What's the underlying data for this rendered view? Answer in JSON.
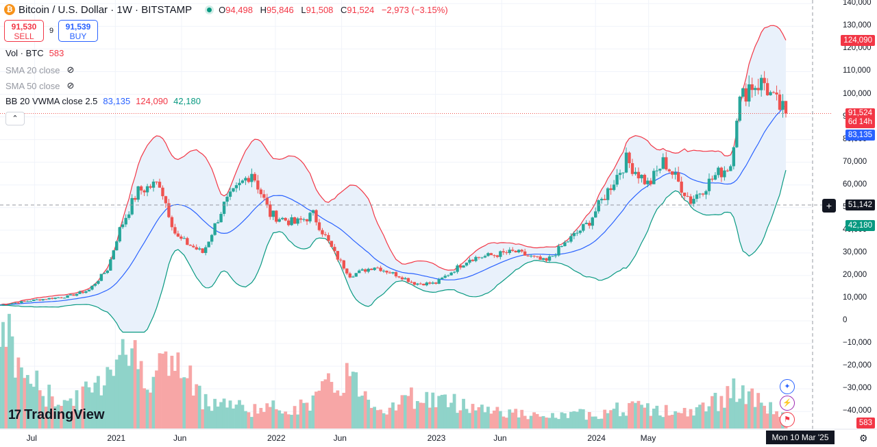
{
  "legend": {
    "logo_glyph": "₿",
    "title": "Bitcoin / U.S. Dollar · 1W · BITSTAMP",
    "ohlc": [
      {
        "k": "O",
        "v": "94,498"
      },
      {
        "k": "H",
        "v": "95,846"
      },
      {
        "k": "L",
        "v": "91,508"
      },
      {
        "k": "C",
        "v": "91,524"
      },
      {
        "k": "",
        "v": "−2,973 (−3.15%)"
      }
    ],
    "sell_price": "91,530",
    "sell_label": "SELL",
    "spread": "9",
    "buy_price": "91,539",
    "buy_label": "BUY",
    "vol_label": "Vol · BTC",
    "vol_value": "583",
    "sma20_label": "SMA 20 close",
    "sma50_label": "SMA 50 close",
    "bb_label": "BB 20 VWMA close 2.5",
    "bb_mid": "83,135",
    "bb_upper": "124,090",
    "bb_lower": "42,180",
    "collapse_glyph": "⌃",
    "eye_glyph": "⊘"
  },
  "price_labels": {
    "upper": "124,090",
    "last": "91,524",
    "countdown": "6d 14h",
    "mid": "83,135",
    "crosshair": "51,142",
    "lower": "42,180",
    "volume": "583",
    "crosshair_glyph": "+"
  },
  "date_label": "Mon 10 Mar '25",
  "brand": "TradingView",
  "brand_mark": "17",
  "side_icons": [
    "✦",
    "⚡",
    "⚑"
  ],
  "gear_glyph": "⚙",
  "colors": {
    "up": "#26a69a",
    "down": "#ef5350",
    "upper_band": "#f23645",
    "lower_band": "#089981",
    "basis": "#2962ff",
    "band_fill": "#e9f1fb",
    "vol_up": "#8fd3c9",
    "vol_down": "#f7a6a6"
  },
  "chart_data": {
    "type": "candlestick",
    "title": "Bitcoin / U.S. Dollar · 1W · BITSTAMP",
    "yaxis": {
      "ticks": [
        140000,
        130000,
        120000,
        110000,
        100000,
        90000,
        80000,
        70000,
        60000,
        50000,
        40000,
        30000,
        20000,
        10000,
        0,
        -10000,
        -20000,
        -30000,
        -40000
      ],
      "tick_labels": [
        "140,000",
        "130,000",
        "120,000",
        "110,000",
        "100,000",
        "90,000",
        "80,000",
        "70,000",
        "60,000",
        "50,000",
        "40,000",
        "30,000",
        "20,000",
        "10,000",
        "0",
        "−10,000",
        "−20,000",
        "−30,000",
        "−40,000"
      ]
    },
    "xaxis": {
      "start": "2020-04-13",
      "end": "2025-03-10",
      "ticks": [
        {
          "date": "2020-07-01",
          "label": "Jul"
        },
        {
          "date": "2021-01-01",
          "label": "2021"
        },
        {
          "date": "2021-06-01",
          "label": "Jun"
        },
        {
          "date": "2022-01-01",
          "label": "2022"
        },
        {
          "date": "2022-06-01",
          "label": "Jun"
        },
        {
          "date": "2023-01-01",
          "label": "2023"
        },
        {
          "date": "2023-06-01",
          "label": "Jun"
        },
        {
          "date": "2024-01-01",
          "label": "2024"
        },
        {
          "date": "2024-05-01",
          "label": "May"
        }
      ]
    },
    "price_anchors": [
      [
        "2020-04-13",
        7000
      ],
      [
        "2020-07-01",
        9200
      ],
      [
        "2020-09-15",
        10800
      ],
      [
        "2020-11-01",
        13500
      ],
      [
        "2020-12-15",
        23000
      ],
      [
        "2021-01-08",
        39000
      ],
      [
        "2021-02-20",
        57000
      ],
      [
        "2021-04-12",
        61000
      ],
      [
        "2021-05-20",
        37000
      ],
      [
        "2021-07-20",
        30000
      ],
      [
        "2021-09-05",
        51000
      ],
      [
        "2021-11-08",
        66000
      ],
      [
        "2021-12-20",
        47000
      ],
      [
        "2022-02-15",
        43000
      ],
      [
        "2022-03-28",
        47000
      ],
      [
        "2022-05-15",
        30000
      ],
      [
        "2022-06-20",
        20000
      ],
      [
        "2022-08-15",
        24000
      ],
      [
        "2022-10-15",
        19500
      ],
      [
        "2022-11-15",
        16500
      ],
      [
        "2023-01-01",
        16500
      ],
      [
        "2023-03-20",
        27500
      ],
      [
        "2023-07-01",
        30500
      ],
      [
        "2023-09-10",
        26000
      ],
      [
        "2023-10-25",
        34500
      ],
      [
        "2023-12-15",
        43000
      ],
      [
        "2024-03-11",
        71000
      ],
      [
        "2024-05-01",
        60000
      ],
      [
        "2024-06-05",
        70500
      ],
      [
        "2024-08-05",
        53000
      ],
      [
        "2024-09-30",
        64000
      ],
      [
        "2024-11-04",
        69000
      ],
      [
        "2024-11-20",
        95000
      ],
      [
        "2024-12-16",
        104000
      ],
      [
        "2025-01-20",
        105000
      ],
      [
        "2025-02-10",
        97000
      ],
      [
        "2025-03-10",
        91524
      ]
    ],
    "volume_anchors": [
      [
        "2020-04-13",
        1.0
      ],
      [
        "2020-06-01",
        0.55
      ],
      [
        "2020-08-01",
        0.3
      ],
      [
        "2020-10-01",
        0.25
      ],
      [
        "2020-12-01",
        0.45
      ],
      [
        "2021-01-15",
        0.85
      ],
      [
        "2021-03-01",
        0.55
      ],
      [
        "2021-05-20",
        0.6
      ],
      [
        "2021-07-15",
        0.3
      ],
      [
        "2021-11-01",
        0.18
      ],
      [
        "2022-03-01",
        0.2
      ],
      [
        "2022-06-15",
        0.5
      ],
      [
        "2022-09-01",
        0.18
      ],
      [
        "2022-11-15",
        0.3
      ],
      [
        "2023-03-15",
        0.22
      ],
      [
        "2023-09-01",
        0.1
      ],
      [
        "2024-01-15",
        0.15
      ],
      [
        "2024-03-15",
        0.2
      ],
      [
        "2024-08-05",
        0.14
      ],
      [
        "2024-11-15",
        0.35
      ],
      [
        "2025-03-10",
        0.12
      ]
    ],
    "last_close": 91524,
    "bollinger": {
      "period": 20,
      "basis": "VWMA close",
      "mult": 2.5,
      "mid": 83135,
      "upper": 124090,
      "lower": 42180
    },
    "crosshair_price": 51142
  }
}
